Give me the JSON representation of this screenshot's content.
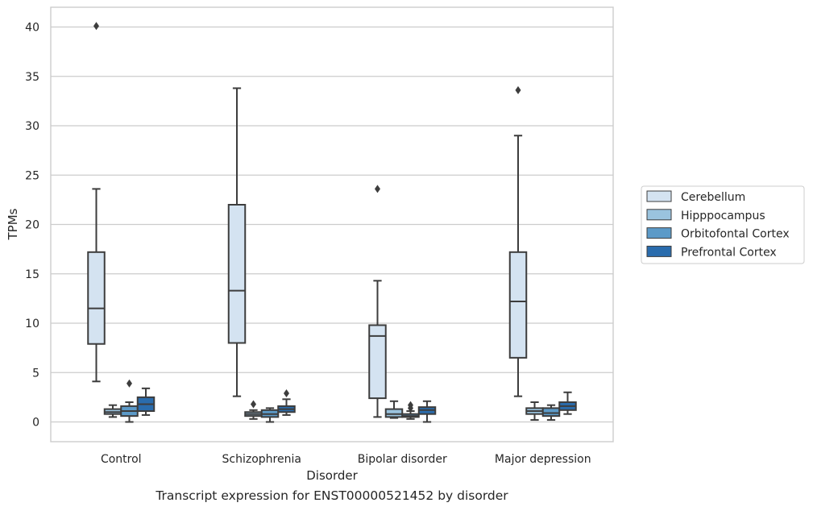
{
  "caption": "Transcript expression for ENST00000521452 by disorder",
  "chart_data": {
    "type": "box",
    "xlabel": "Disorder",
    "ylabel": "TPMs",
    "ylim": [
      -2,
      42
    ],
    "yticks": [
      0,
      5,
      10,
      15,
      20,
      25,
      30,
      35,
      40
    ],
    "grid": true,
    "legend_position": "right",
    "categories": [
      "Control",
      "Schizophrenia",
      "Bipolar disorder",
      "Major depression"
    ],
    "series": [
      {
        "name": "Cerebellum",
        "color": "#d4e3f1",
        "boxes": [
          {
            "whisker_low": 4.1,
            "q1": 7.9,
            "median": 11.5,
            "q3": 17.2,
            "whisker_high": 23.6,
            "outliers": [
              40.1
            ]
          },
          {
            "whisker_low": 2.6,
            "q1": 8.0,
            "median": 13.3,
            "q3": 22.0,
            "whisker_high": 33.8,
            "outliers": []
          },
          {
            "whisker_low": 0.5,
            "q1": 2.4,
            "median": 8.7,
            "q3": 9.8,
            "whisker_high": 14.3,
            "outliers": [
              23.6
            ]
          },
          {
            "whisker_low": 2.6,
            "q1": 6.5,
            "median": 12.2,
            "q3": 17.2,
            "whisker_high": 29.0,
            "outliers": [
              33.6
            ]
          }
        ]
      },
      {
        "name": "Hipppocampus",
        "color": "#9ac3de",
        "boxes": [
          {
            "whisker_low": 0.5,
            "q1": 0.8,
            "median": 1.0,
            "q3": 1.3,
            "whisker_high": 1.7,
            "outliers": []
          },
          {
            "whisker_low": 0.3,
            "q1": 0.6,
            "median": 0.8,
            "q3": 1.0,
            "whisker_high": 1.2,
            "outliers": [
              1.8
            ]
          },
          {
            "whisker_low": 0.4,
            "q1": 0.5,
            "median": 0.8,
            "q3": 1.3,
            "whisker_high": 2.1,
            "outliers": []
          },
          {
            "whisker_low": 0.2,
            "q1": 0.8,
            "median": 1.1,
            "q3": 1.4,
            "whisker_high": 2.0,
            "outliers": []
          }
        ]
      },
      {
        "name": "Orbitofontal Cortex",
        "color": "#5c9ac8",
        "boxes": [
          {
            "whisker_low": 0.0,
            "q1": 0.6,
            "median": 1.1,
            "q3": 1.6,
            "whisker_high": 2.0,
            "outliers": [
              3.9
            ]
          },
          {
            "whisker_low": 0.0,
            "q1": 0.5,
            "median": 0.8,
            "q3": 1.2,
            "whisker_high": 1.4,
            "outliers": []
          },
          {
            "whisker_low": 0.3,
            "q1": 0.5,
            "median": 0.6,
            "q3": 0.8,
            "whisker_high": 1.1,
            "outliers": [
              1.4,
              1.7
            ]
          },
          {
            "whisker_low": 0.2,
            "q1": 0.6,
            "median": 0.9,
            "q3": 1.4,
            "whisker_high": 1.7,
            "outliers": []
          }
        ]
      },
      {
        "name": "Prefrontal Cortex",
        "color": "#2a6cad",
        "boxes": [
          {
            "whisker_low": 0.7,
            "q1": 1.1,
            "median": 1.8,
            "q3": 2.5,
            "whisker_high": 3.4,
            "outliers": []
          },
          {
            "whisker_low": 0.7,
            "q1": 1.0,
            "median": 1.3,
            "q3": 1.6,
            "whisker_high": 2.3,
            "outliers": [
              2.9
            ]
          },
          {
            "whisker_low": 0.0,
            "q1": 0.8,
            "median": 1.2,
            "q3": 1.5,
            "whisker_high": 2.1,
            "outliers": []
          },
          {
            "whisker_low": 0.8,
            "q1": 1.2,
            "median": 1.6,
            "q3": 2.0,
            "whisker_high": 3.0,
            "outliers": []
          }
        ]
      }
    ]
  }
}
